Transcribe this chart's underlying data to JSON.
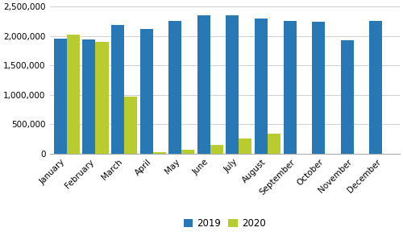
{
  "months": [
    "January",
    "February",
    "March",
    "April",
    "May",
    "June",
    "July",
    "August",
    "September",
    "October",
    "November",
    "December"
  ],
  "values_2019": [
    1960000,
    1940000,
    2185000,
    2115000,
    2255000,
    2355000,
    2345000,
    2295000,
    2255000,
    2245000,
    1925000,
    2255000
  ],
  "values_2020": [
    2025000,
    1905000,
    965000,
    28000,
    72000,
    150000,
    260000,
    345000,
    0,
    0,
    0,
    0
  ],
  "color_2019": "#2878b5",
  "color_2020": "#b8cc30",
  "legend_labels": [
    "2019",
    "2020"
  ],
  "ylim": [
    0,
    2500000
  ],
  "yticks": [
    0,
    500000,
    1000000,
    1500000,
    2000000,
    2500000
  ],
  "background_color": "#ffffff",
  "grid_color": "#d0d0d0",
  "bar_width": 0.45
}
